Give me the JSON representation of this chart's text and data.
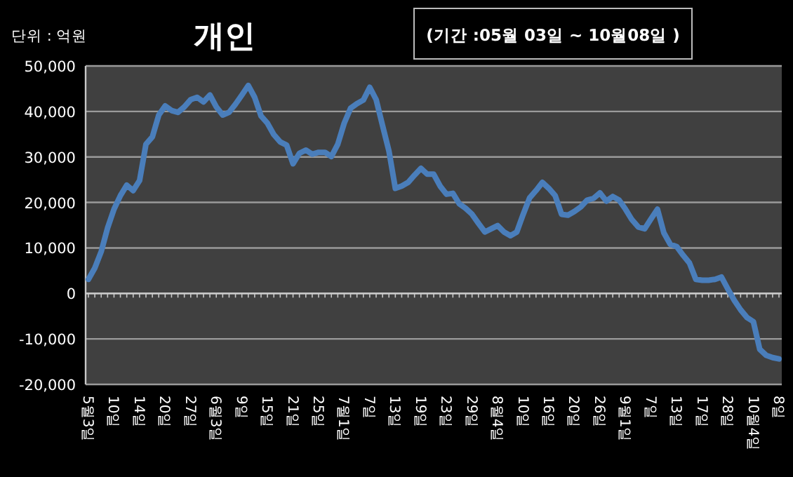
{
  "chart_data": {
    "type": "line",
    "title": "개인",
    "subtitle": "(기간 :05월 03일 ~ 10월08일 )",
    "annotations": [
      "단위 : 억원"
    ],
    "categories": [
      "5월3일",
      null,
      null,
      null,
      "10일",
      null,
      null,
      null,
      "14일",
      null,
      null,
      null,
      "20일",
      null,
      null,
      null,
      "27일",
      null,
      null,
      null,
      "6월3일",
      null,
      null,
      null,
      "9일",
      null,
      null,
      null,
      "15일",
      null,
      null,
      null,
      "21일",
      null,
      null,
      null,
      "25일",
      null,
      null,
      null,
      "7월1일",
      null,
      null,
      null,
      "7일",
      null,
      null,
      null,
      "13일",
      null,
      null,
      null,
      "19일",
      null,
      null,
      null,
      "23일",
      null,
      null,
      null,
      "29일",
      null,
      null,
      null,
      "8월4일",
      null,
      null,
      null,
      "10일",
      null,
      null,
      null,
      "16일",
      null,
      null,
      null,
      "20일",
      null,
      null,
      null,
      "26일",
      null,
      null,
      null,
      "9월1일",
      null,
      null,
      null,
      "7일",
      null,
      null,
      null,
      "13일",
      null,
      null,
      null,
      "17일",
      null,
      null,
      null,
      "28일",
      null,
      null,
      null,
      "10월4일",
      null,
      null,
      null,
      "8일"
    ],
    "values": [
      3100,
      5600,
      9200,
      14400,
      18500,
      21500,
      23800,
      22600,
      24800,
      32800,
      34400,
      39200,
      41200,
      40200,
      39800,
      41000,
      42600,
      43100,
      42100,
      43600,
      41000,
      39200,
      39800,
      41600,
      43600,
      45700,
      43100,
      39000,
      37400,
      34900,
      33300,
      32600,
      28500,
      30800,
      31500,
      30600,
      31000,
      31000,
      30100,
      32800,
      37400,
      40700,
      41700,
      42500,
      45300,
      42600,
      36900,
      31300,
      23100,
      23600,
      24400,
      26000,
      27500,
      26200,
      26200,
      23600,
      21800,
      22000,
      19700,
      18700,
      17400,
      15400,
      13500,
      14200,
      14900,
      13500,
      12700,
      13500,
      17400,
      21000,
      22600,
      24400,
      23100,
      21500,
      17400,
      17200,
      18000,
      19000,
      20500,
      20900,
      22100,
      20300,
      21300,
      20500,
      18500,
      16200,
      14600,
      14200,
      16400,
      18500,
      13300,
      10800,
      10300,
      8400,
      6700,
      3100,
      2900,
      2900,
      3100,
      3600,
      1000,
      -1500,
      -3600,
      -5300,
      -6200,
      -12300,
      -13600,
      -14100,
      -14400
    ],
    "color": "#4a7ebb",
    "ylim": [
      -20000,
      50000
    ],
    "yticks": [
      {
        "value": 50000,
        "label": "50,000"
      },
      {
        "value": 40000,
        "label": "40,000"
      },
      {
        "value": 30000,
        "label": "30,000"
      },
      {
        "value": 20000,
        "label": "20,000"
      },
      {
        "value": 10000,
        "label": "10,000"
      },
      0,
      {
        "value": -10000,
        "label": "-10,000"
      },
      {
        "value": -20000,
        "label": "-20,000"
      }
    ],
    "grid": "y"
  }
}
